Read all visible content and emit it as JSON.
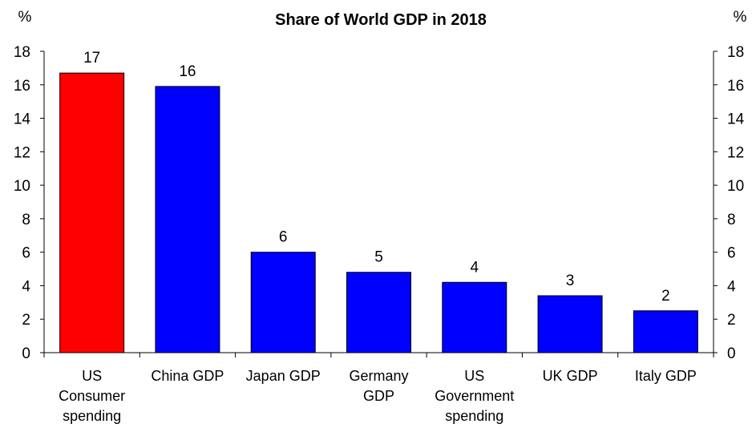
{
  "chart_data": {
    "type": "bar",
    "title": "Share of  World GDP in 2018",
    "y_unit_left": "%",
    "y_unit_right": "%",
    "categories": [
      [
        "US",
        "Consumer",
        "spending"
      ],
      [
        "China GDP"
      ],
      [
        "Japan GDP"
      ],
      [
        "Germany",
        "GDP"
      ],
      [
        "US",
        "Government",
        "spending"
      ],
      [
        "UK GDP"
      ],
      [
        "Italy GDP"
      ]
    ],
    "values": [
      16.7,
      15.9,
      6.0,
      4.8,
      4.2,
      3.4,
      2.5
    ],
    "data_labels": [
      "17",
      "16",
      "6",
      "5",
      "4",
      "3",
      "2"
    ],
    "bar_colors": [
      "#ff0000",
      "#0000ff",
      "#0000ff",
      "#0000ff",
      "#0000ff",
      "#0000ff",
      "#0000ff"
    ],
    "ylim": [
      0,
      18
    ],
    "yticks": [
      0,
      2,
      4,
      6,
      8,
      10,
      12,
      14,
      16,
      18
    ],
    "grid": false,
    "legend": "none"
  }
}
